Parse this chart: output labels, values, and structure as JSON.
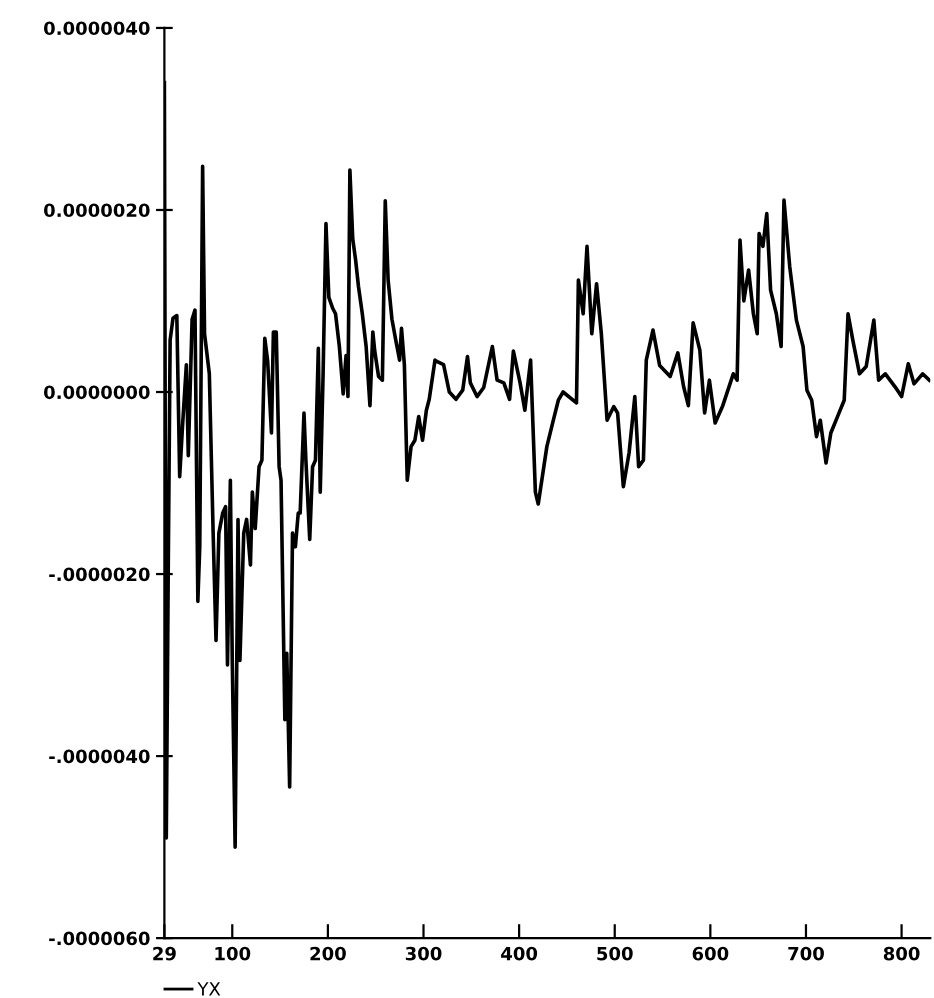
{
  "chart_data": {
    "type": "line",
    "x": [
      29,
      30,
      31,
      33,
      35,
      38,
      42,
      45,
      48,
      52,
      54,
      58,
      61,
      64,
      66,
      69,
      71,
      76,
      80,
      83,
      86,
      90,
      93,
      95,
      98,
      100,
      103,
      106,
      108,
      112,
      115,
      119,
      121,
      124,
      128,
      131,
      134,
      137,
      141,
      143,
      146,
      149,
      151,
      155,
      157,
      160,
      163,
      166,
      169,
      171,
      175,
      177,
      181,
      184,
      187,
      190,
      192,
      195,
      198,
      201,
      205,
      208,
      212,
      216,
      219,
      221,
      223,
      226,
      229,
      232,
      236,
      240,
      244,
      247,
      249,
      253,
      257,
      260,
      263,
      267,
      271,
      275,
      277,
      280,
      283,
      287,
      291,
      295,
      299,
      303,
      306,
      312,
      315,
      321,
      327,
      334,
      341,
      346,
      349,
      356,
      363,
      372,
      377,
      384,
      390,
      394,
      401,
      406,
      412,
      417,
      420,
      429,
      436,
      441,
      446,
      460,
      462,
      467,
      471,
      476,
      481,
      486,
      492,
      499,
      503,
      509,
      515,
      521,
      525,
      530,
      533,
      540,
      547,
      558,
      566,
      572,
      577,
      582,
      589,
      594,
      599,
      605,
      613,
      624,
      628,
      631,
      635,
      640,
      645,
      649,
      651,
      655,
      659,
      663,
      669,
      674,
      677,
      683,
      690,
      697,
      701,
      706,
      711,
      715,
      721,
      726,
      733,
      740,
      744,
      749,
      756,
      763,
      771,
      776,
      783,
      793,
      800,
      807,
      813,
      822,
      829
    ],
    "series": [
      {
        "name": "YX",
        "color": "#000000",
        "values": [
          3.4e-06,
          -1e-06,
          -4.9e-06,
          -2e-06,
          5.7e-07,
          8.1e-07,
          8.4e-07,
          -9.3e-07,
          -3.7e-07,
          3e-07,
          -7e-07,
          8e-07,
          9e-07,
          -2.3e-06,
          -1.7e-06,
          2.48e-06,
          6.4e-07,
          2e-07,
          -1.55e-06,
          -2.73e-06,
          -1.55e-06,
          -1.33e-06,
          -1.26e-06,
          -3e-06,
          -9.7e-07,
          -2.95e-06,
          -5e-06,
          -1.4e-06,
          -2.95e-06,
          -1.55e-06,
          -1.4e-06,
          -1.9e-06,
          -1.1e-06,
          -1.5e-06,
          -8.2e-07,
          -7.5e-07,
          5.9e-07,
          3.4e-07,
          -4.5e-07,
          6.6e-07,
          6.6e-07,
          -8.2e-07,
          -9.7e-07,
          -3.6e-06,
          -2.87e-06,
          -4.34e-06,
          -1.55e-06,
          -1.7e-06,
          -1.33e-06,
          -1.33e-06,
          -2.3e-07,
          -7.5e-07,
          -1.62e-06,
          -8.2e-07,
          -7.5e-07,
          4.8e-07,
          -1.1e-06,
          2e-07,
          1.85e-06,
          1.04e-06,
          9.2e-07,
          8.6e-07,
          5e-07,
          -2e-08,
          4e-07,
          -5e-08,
          2.44e-06,
          1.68e-06,
          1.45e-06,
          1.16e-06,
          8.6e-07,
          5e-07,
          -1.5e-07,
          6.6e-07,
          4.5e-07,
          1.7e-07,
          1.3e-07,
          2.1e-06,
          1.23e-06,
          8e-07,
          5.7e-07,
          3.5e-07,
          7e-07,
          3e-07,
          -9.7e-07,
          -6e-07,
          -5.3e-07,
          -2.7e-07,
          -5.3e-07,
          -2e-07,
          -8e-08,
          3.5e-07,
          3.3e-07,
          3e-07,
          0.0,
          -8e-08,
          2e-08,
          3.9e-07,
          1e-07,
          -5e-08,
          5e-08,
          5e-07,
          1.3e-07,
          1e-07,
          -8e-08,
          4.5e-07,
          1e-07,
          -2e-07,
          3.5e-07,
          -1.1e-06,
          -1.23e-06,
          -6e-07,
          -3e-07,
          -9e-08,
          0.0,
          -1.2e-07,
          1.23e-06,
          8.6e-07,
          1.6e-06,
          6.4e-07,
          1.19e-06,
          6.4e-07,
          -3.1e-07,
          -1.6e-07,
          -2.3e-07,
          -1.04e-06,
          -6.7e-07,
          -5e-08,
          -8.2e-07,
          -7.5e-07,
          3.5e-07,
          6.8e-07,
          2.9e-07,
          1.7e-07,
          4.3e-07,
          6e-08,
          -1.5e-07,
          7.6e-07,
          4.6e-07,
          -2.3e-07,
          1.3e-07,
          -3.4e-07,
          -1.5e-07,
          2e-07,
          1.3e-07,
          1.67e-06,
          1e-06,
          1.34e-06,
          8.6e-07,
          6.4e-07,
          1.74e-06,
          1.6e-06,
          1.96e-06,
          1.12e-06,
          8.6e-07,
          5e-07,
          2.11e-06,
          1.38e-06,
          7.9e-07,
          5e-07,
          2e-08,
          -9e-08,
          -4.9e-07,
          -3.1e-07,
          -7.8e-07,
          -4.5e-07,
          -2.7e-07,
          -9e-08,
          8.6e-07,
          5.7e-07,
          2e-07,
          2.8e-07,
          7.9e-07,
          1.3e-07,
          2e-07,
          6e-08,
          -5e-08,
          3.1e-07,
          9e-08,
          2e-07,
          1.3e-07
        ]
      }
    ],
    "xlim": [
      29,
      830
    ],
    "xticks": [
      29,
      100,
      200,
      300,
      400,
      500,
      600,
      700,
      800
    ],
    "ylim": [
      -6e-06,
      4e-06
    ],
    "yticks": [
      {
        "value": -6e-06,
        "label": "-.0000060"
      },
      {
        "value": -4e-06,
        "label": "-.0000040"
      },
      {
        "value": -2e-06,
        "label": "-.0000020"
      },
      {
        "value": 0,
        "label": "0.0000000"
      },
      {
        "value": 2e-06,
        "label": "0.0000020"
      },
      {
        "value": 4e-06,
        "label": "0.0000040"
      }
    ],
    "legend": "bottom left",
    "grid": false,
    "line_style": "solid",
    "marker": "none"
  }
}
